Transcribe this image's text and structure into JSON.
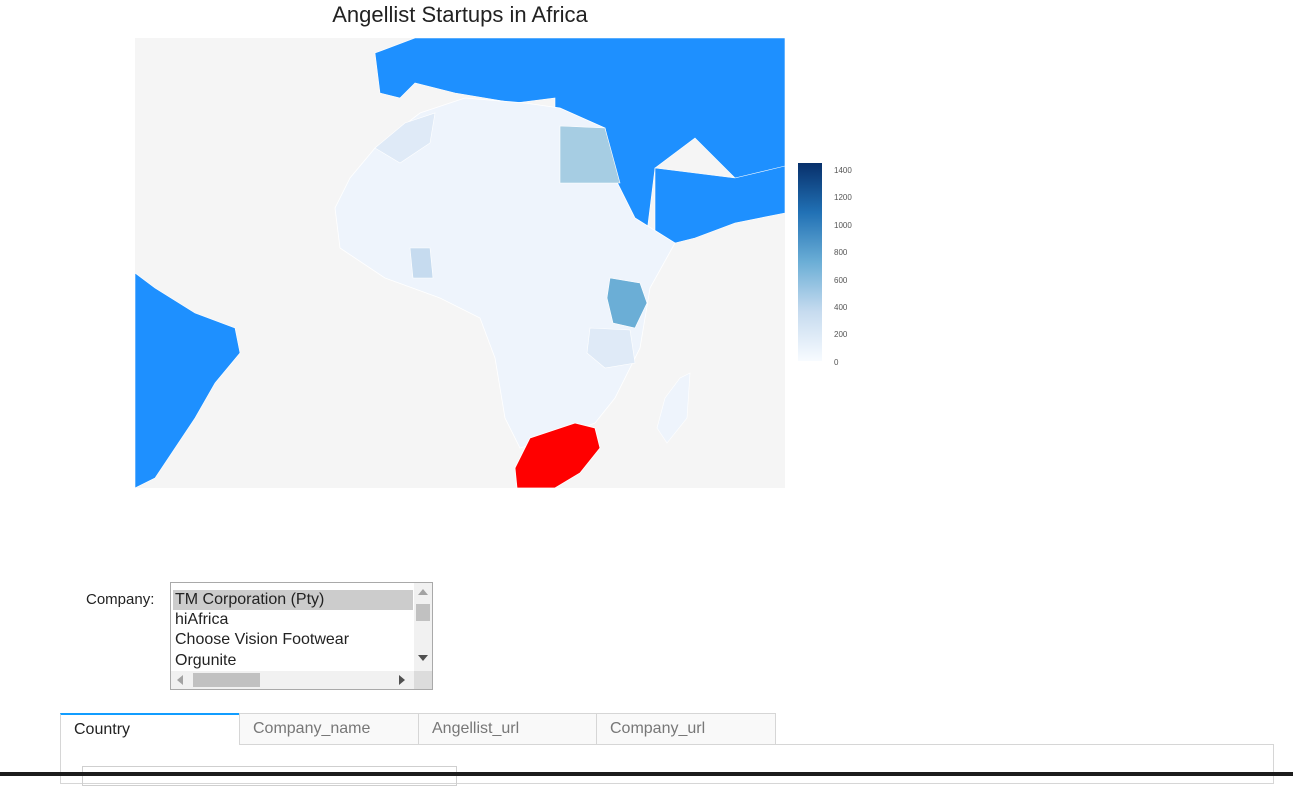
{
  "map": {
    "title": "Angellist Startups in Africa",
    "colors": {
      "ocean_land_bg": "#f5f5f5",
      "non_africa_land": "#1e90ff",
      "highlight_country": "#ff0000"
    },
    "colorbar": {
      "ticks": [
        "1400",
        "1200",
        "1000",
        "800",
        "600",
        "400",
        "200",
        "0"
      ],
      "low_color": "#f7fbff",
      "high_color": "#08306b"
    }
  },
  "company_selector": {
    "label": "Company:",
    "options": [
      {
        "label": "TM Corporation (Pty)",
        "selected": true
      },
      {
        "label": "hiAfrica",
        "selected": false
      },
      {
        "label": "Choose Vision Footwear",
        "selected": false
      },
      {
        "label": "Orgunite",
        "selected": false
      }
    ]
  },
  "tabs": [
    {
      "label": "Country",
      "active": true
    },
    {
      "label": "Company_name",
      "active": false
    },
    {
      "label": "Angellist_url",
      "active": false
    },
    {
      "label": "Company_url",
      "active": false
    }
  ]
}
